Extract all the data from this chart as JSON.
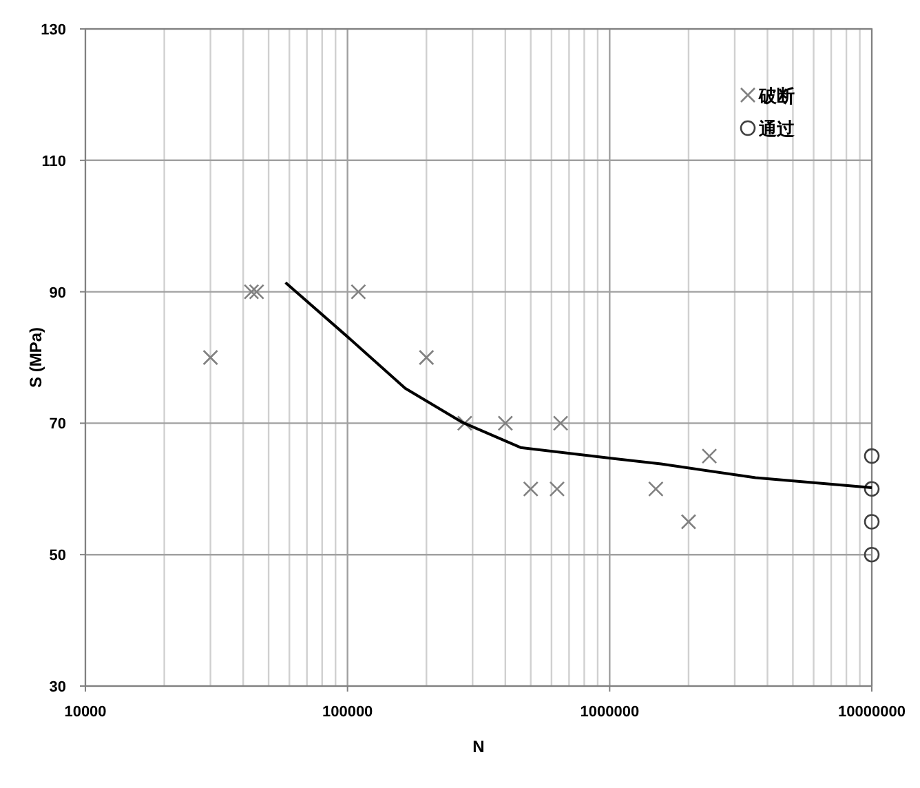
{
  "chart_data": {
    "type": "scatter",
    "xlabel": "N",
    "ylabel": "S (MPa)",
    "log": "x",
    "grid": true,
    "legend": "top right",
    "xlim": [
      10000,
      10000000
    ],
    "xticks": [
      10000,
      100000,
      1000000,
      10000000
    ],
    "ylim": [
      30,
      130
    ],
    "yticks": [
      30,
      50,
      70,
      90,
      110,
      130
    ],
    "series": [
      {
        "name": "破断",
        "color": "#808080",
        "marker": "cross",
        "x": [
          30000,
          43000,
          45000,
          110000,
          200000,
          280000,
          400000,
          650000,
          500000,
          630000,
          1500000,
          2000000,
          2400000
        ],
        "values": [
          80,
          90,
          90,
          90,
          80,
          70,
          70,
          70,
          60,
          60,
          60,
          55,
          65
        ]
      },
      {
        "name": "通过",
        "color": "#404040",
        "marker": "circle",
        "x": [
          10000000,
          10000000,
          10000000,
          10000000
        ],
        "values": [
          65,
          60,
          55,
          50
        ]
      },
      {
        "type": "line",
        "color": "#000000",
        "marker": "none",
        "x": [
          58000,
          101000,
          166000,
          275000,
          457000,
          1050000,
          1570000,
          3600000,
          8100000,
          10000000
        ],
        "values": [
          91.4,
          83.0,
          75.3,
          70.1,
          66.3,
          64.6,
          63.8,
          61.7,
          60.5,
          60.2
        ]
      }
    ]
  }
}
